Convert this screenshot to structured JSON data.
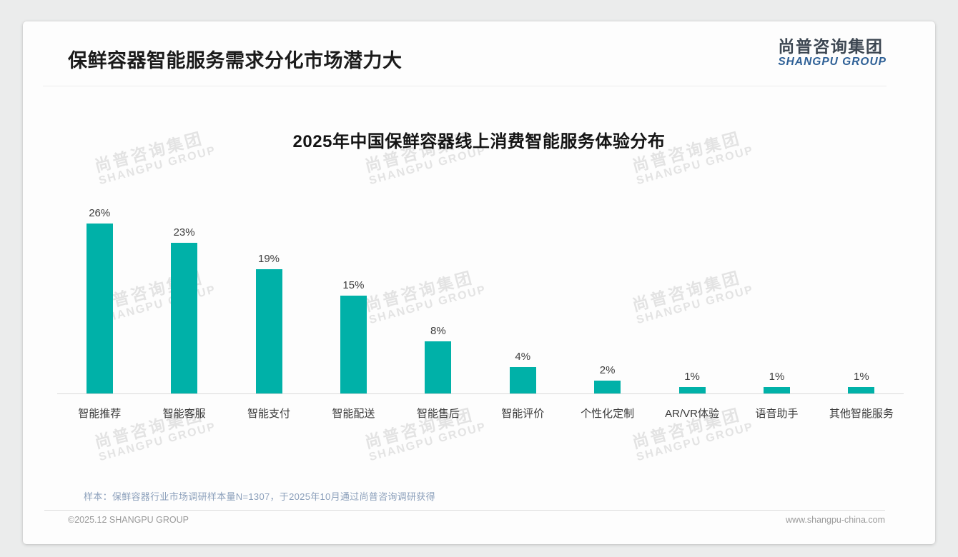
{
  "header": {
    "title": "保鲜容器智能服务需求分化市场潜力大",
    "logo_cn": "尚普咨询集团",
    "logo_en": "SHANGPU GROUP"
  },
  "chart_data": {
    "type": "bar",
    "title": "2025年中国保鲜容器线上消费智能服务体验分布",
    "categories": [
      "智能推荐",
      "智能客服",
      "智能支付",
      "智能配送",
      "智能售后",
      "智能评价",
      "个性化定制",
      "AR/VR体验",
      "语音助手",
      "其他智能服务"
    ],
    "values": [
      26,
      23,
      19,
      15,
      8,
      4,
      2,
      1,
      1,
      1
    ],
    "value_labels": [
      "26%",
      "23%",
      "19%",
      "15%",
      "8%",
      "4%",
      "2%",
      "1%",
      "1%",
      "1%"
    ],
    "unit": "%",
    "bar_color": "#00b1a8",
    "ylim": [
      0,
      28
    ],
    "grid": false,
    "legend": false,
    "xlabel": "",
    "ylabel": ""
  },
  "note": "样本：保鲜容器行业市场调研样本量N=1307，于2025年10月通过尚普咨询调研获得",
  "footer": {
    "left": "©2025.12 SHANGPU GROUP",
    "right": "www.shangpu-china.com"
  },
  "watermark": {
    "cn": "尚普咨询集团",
    "en": "SHANGPU GROUP"
  }
}
